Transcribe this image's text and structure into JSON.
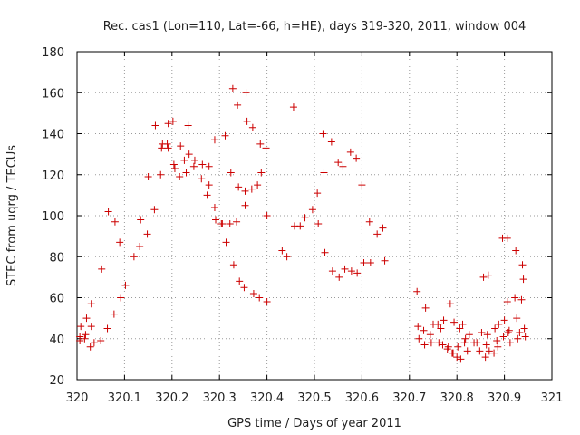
{
  "chart_data": {
    "type": "scatter",
    "title": "Rec. cas1 (Lon=110, Lat=-66, h=HE), days 319-320, 2011, window 004",
    "xlabel": "GPS time / Days of year 2011",
    "ylabel": "STEC from uqrg / TECUs",
    "xlim": [
      320,
      321
    ],
    "ylim": [
      20,
      180
    ],
    "xticks": [
      "320",
      "320.1",
      "320.2",
      "320.3",
      "320.4",
      "320.5",
      "320.6",
      "320.7",
      "320.8",
      "320.9",
      "321"
    ],
    "yticks": [
      "20",
      "40",
      "60",
      "80",
      "100",
      "120",
      "140",
      "160",
      "180"
    ],
    "grid": true,
    "legend": "none",
    "marker": "plus",
    "color": "#cc0000",
    "points": [
      [
        320.006,
        39
      ],
      [
        320.006,
        41
      ],
      [
        320.008,
        46
      ],
      [
        320.016,
        40
      ],
      [
        320.018,
        42
      ],
      [
        320.02,
        50
      ],
      [
        320.028,
        36
      ],
      [
        320.03,
        57
      ],
      [
        320.03,
        46
      ],
      [
        320.036,
        38
      ],
      [
        320.05,
        39
      ],
      [
        320.052,
        74
      ],
      [
        320.064,
        45
      ],
      [
        320.066,
        102
      ],
      [
        320.078,
        52
      ],
      [
        320.08,
        97
      ],
      [
        320.09,
        87
      ],
      [
        320.092,
        60
      ],
      [
        320.102,
        66
      ],
      [
        320.12,
        80
      ],
      [
        320.132,
        85
      ],
      [
        320.134,
        98
      ],
      [
        320.148,
        91
      ],
      [
        320.15,
        119
      ],
      [
        320.163,
        103
      ],
      [
        320.165,
        144
      ],
      [
        320.176,
        120
      ],
      [
        320.178,
        133
      ],
      [
        320.18,
        135
      ],
      [
        320.19,
        135
      ],
      [
        320.192,
        145
      ],
      [
        320.192,
        133
      ],
      [
        320.202,
        146
      ],
      [
        320.204,
        125
      ],
      [
        320.206,
        123
      ],
      [
        320.216,
        119
      ],
      [
        320.218,
        134
      ],
      [
        320.226,
        127
      ],
      [
        320.23,
        121
      ],
      [
        320.234,
        144
      ],
      [
        320.236,
        130
      ],
      [
        320.246,
        124
      ],
      [
        320.248,
        127
      ],
      [
        320.262,
        118
      ],
      [
        320.264,
        125
      ],
      [
        320.274,
        110
      ],
      [
        320.278,
        115
      ],
      [
        320.278,
        124
      ],
      [
        320.29,
        104
      ],
      [
        320.29,
        137
      ],
      [
        320.292,
        98
      ],
      [
        320.304,
        96
      ],
      [
        320.306,
        96
      ],
      [
        320.312,
        139
      ],
      [
        320.314,
        87
      ],
      [
        320.322,
        96
      ],
      [
        320.324,
        121
      ],
      [
        320.328,
        162
      ],
      [
        320.33,
        76
      ],
      [
        320.336,
        97
      ],
      [
        320.338,
        154
      ],
      [
        320.34,
        114
      ],
      [
        320.342,
        68
      ],
      [
        320.352,
        65
      ],
      [
        320.354,
        112
      ],
      [
        320.354,
        105
      ],
      [
        320.356,
        160
      ],
      [
        320.358,
        146
      ],
      [
        320.368,
        113
      ],
      [
        320.37,
        143
      ],
      [
        320.372,
        62
      ],
      [
        320.38,
        115
      ],
      [
        320.384,
        60
      ],
      [
        320.386,
        135
      ],
      [
        320.388,
        121
      ],
      [
        320.398,
        133
      ],
      [
        320.4,
        100
      ],
      [
        320.4,
        58
      ],
      [
        320.432,
        83
      ],
      [
        320.442,
        80
      ],
      [
        320.456,
        153
      ],
      [
        320.458,
        95
      ],
      [
        320.47,
        95
      ],
      [
        320.48,
        99
      ],
      [
        320.496,
        103
      ],
      [
        320.506,
        111
      ],
      [
        320.508,
        96
      ],
      [
        320.518,
        140
      ],
      [
        320.52,
        121
      ],
      [
        320.522,
        82
      ],
      [
        320.536,
        136
      ],
      [
        320.538,
        73
      ],
      [
        320.55,
        126
      ],
      [
        320.552,
        70
      ],
      [
        320.56,
        124
      ],
      [
        320.564,
        74
      ],
      [
        320.576,
        131
      ],
      [
        320.578,
        73
      ],
      [
        320.588,
        128
      ],
      [
        320.59,
        72
      ],
      [
        320.6,
        115
      ],
      [
        320.604,
        77
      ],
      [
        320.616,
        97
      ],
      [
        320.618,
        77
      ],
      [
        320.632,
        91
      ],
      [
        320.644,
        94
      ],
      [
        320.648,
        78
      ],
      [
        320.716,
        63
      ],
      [
        320.718,
        46
      ],
      [
        320.72,
        40
      ],
      [
        320.73,
        44
      ],
      [
        320.732,
        37
      ],
      [
        320.734,
        55
      ],
      [
        320.744,
        42
      ],
      [
        320.746,
        38
      ],
      [
        320.75,
        47
      ],
      [
        320.76,
        47
      ],
      [
        320.762,
        38
      ],
      [
        320.766,
        45
      ],
      [
        320.77,
        37
      ],
      [
        320.772,
        49
      ],
      [
        320.78,
        35
      ],
      [
        320.782,
        36
      ],
      [
        320.786,
        57
      ],
      [
        320.79,
        33
      ],
      [
        320.792,
        33
      ],
      [
        320.794,
        48
      ],
      [
        320.8,
        31
      ],
      [
        320.802,
        36
      ],
      [
        320.806,
        45
      ],
      [
        320.808,
        30
      ],
      [
        320.812,
        47
      ],
      [
        320.816,
        38
      ],
      [
        320.818,
        40
      ],
      [
        320.822,
        34
      ],
      [
        320.826,
        42
      ],
      [
        320.836,
        38
      ],
      [
        320.842,
        38
      ],
      [
        320.848,
        34
      ],
      [
        320.852,
        43
      ],
      [
        320.856,
        70
      ],
      [
        320.86,
        31
      ],
      [
        320.862,
        37
      ],
      [
        320.864,
        42
      ],
      [
        320.866,
        71
      ],
      [
        320.868,
        34
      ],
      [
        320.878,
        33
      ],
      [
        320.88,
        45
      ],
      [
        320.884,
        39
      ],
      [
        320.886,
        36
      ],
      [
        320.888,
        47
      ],
      [
        320.896,
        89
      ],
      [
        320.898,
        41
      ],
      [
        320.9,
        49
      ],
      [
        320.906,
        89
      ],
      [
        320.906,
        58
      ],
      [
        320.908,
        43
      ],
      [
        320.91,
        44
      ],
      [
        320.912,
        38
      ],
      [
        320.922,
        60
      ],
      [
        320.924,
        83
      ],
      [
        320.926,
        50
      ],
      [
        320.928,
        40
      ],
      [
        320.932,
        43
      ],
      [
        320.936,
        59
      ],
      [
        320.938,
        76
      ],
      [
        320.94,
        69
      ],
      [
        320.942,
        45
      ],
      [
        320.944,
        41
      ]
    ]
  }
}
